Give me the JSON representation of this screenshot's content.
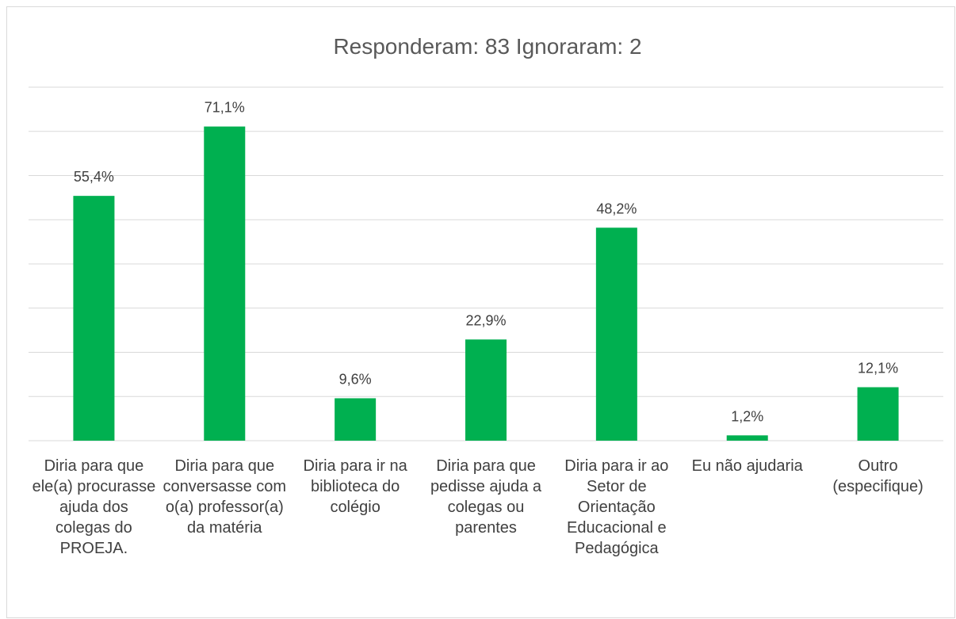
{
  "chart_data": {
    "type": "bar",
    "title": "Responderam: 83   Ignoraram: 2",
    "categories": [
      "Diria para que ele(a) procurasse ajuda dos colegas do PROEJA.",
      "Diria para que conversasse com o(a) professor(a) da matéria",
      "Diria para ir na biblioteca do colégio",
      "Diria para que pedisse ajuda a colegas ou parentes",
      "Diria para ir ao Setor de Orientação Educacional e Pedagógica",
      "Eu não ajudaria",
      "Outro (especifique)"
    ],
    "values": [
      55.4,
      71.1,
      9.6,
      22.9,
      48.2,
      1.2,
      12.1
    ],
    "value_labels": [
      "55,4%",
      "71,1%",
      "9,6%",
      "22,9%",
      "48,2%",
      "1,2%",
      "12,1%"
    ],
    "color": "#00b050",
    "ylim": [
      0,
      80
    ],
    "yticks": [
      0,
      10,
      20,
      30,
      40,
      50,
      60,
      70,
      80
    ],
    "grid": true
  }
}
